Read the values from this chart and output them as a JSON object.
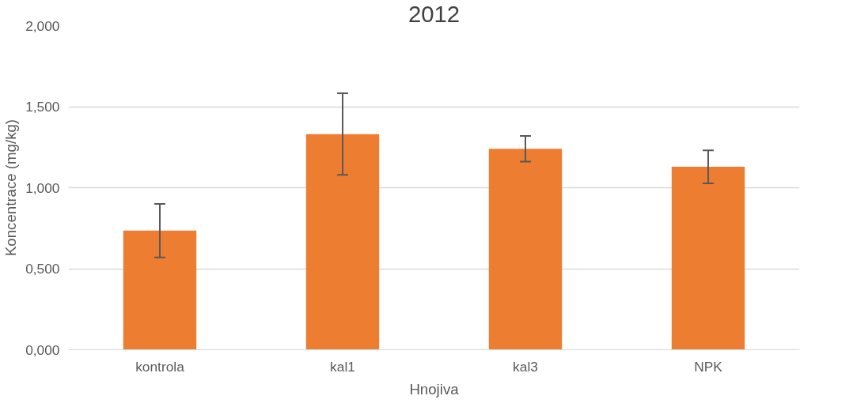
{
  "chart_data": {
    "type": "bar",
    "title": "2012",
    "xlabel": "Hnojiva",
    "ylabel": "Koncentrace (mg/kg)",
    "categories": [
      "kontrola",
      "kal1",
      "kal3",
      "NPK"
    ],
    "series": [
      {
        "color": "#ed7d31",
        "values": [
          0.735,
          1.331,
          1.24,
          1.129
        ],
        "errors": [
          [
            0.569,
            0.9
          ],
          [
            1.079,
            1.583
          ],
          [
            1.161,
            1.32
          ],
          [
            1.027,
            1.231
          ]
        ]
      }
    ],
    "ylim": [
      0,
      2
    ],
    "yticks": [
      {
        "value": 0,
        "label": "0,000"
      },
      {
        "value": 0.5,
        "label": "0,500"
      },
      {
        "value": 1,
        "label": "1,000"
      },
      {
        "value": 1.5,
        "label": "1,500"
      },
      {
        "value": 2,
        "label": "2,000"
      }
    ],
    "grid": "y"
  }
}
